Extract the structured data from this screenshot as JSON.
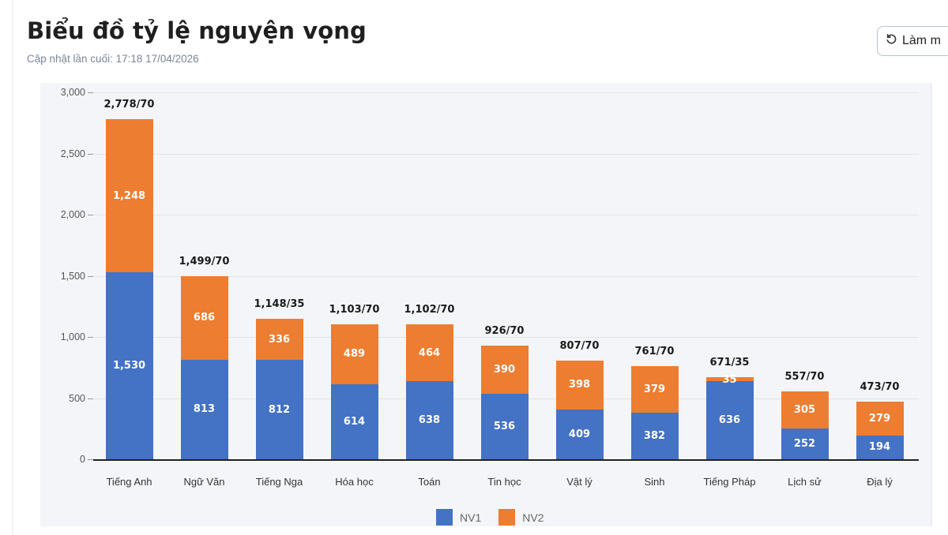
{
  "header": {
    "title": "Biểu đồ tỷ lệ nguyện vọng",
    "subtitle": "Cập nhật lần cuối: 17:18 17/04/2026",
    "refresh_label": "Làm m"
  },
  "colors": {
    "nv1": "#4472c4",
    "nv2": "#ed7d31"
  },
  "chart_data": {
    "type": "bar",
    "stacked": true,
    "title": "Biểu đồ tỷ lệ nguyện vọng",
    "xlabel": "",
    "ylabel": "",
    "ylim": [
      0,
      3000
    ],
    "yticks": [
      "0",
      "500",
      "1,000",
      "1,500",
      "2,000",
      "2,500",
      "3,000"
    ],
    "grid": true,
    "legend_position": "bottom",
    "categories": [
      "Tiếng Anh",
      "Ngữ Văn",
      "Tiếng Nga",
      "Hóa học",
      "Toán",
      "Tin học",
      "Vật lý",
      "Sinh",
      "Tiếng Pháp",
      "Lịch sử",
      "Địa lý"
    ],
    "series": [
      {
        "name": "NV1",
        "values": [
          1530,
          813,
          812,
          614,
          638,
          536,
          409,
          382,
          636,
          252,
          194
        ]
      },
      {
        "name": "NV2",
        "values": [
          1248,
          686,
          336,
          489,
          464,
          390,
          398,
          379,
          35,
          305,
          279
        ]
      }
    ],
    "totals": [
      "2,778/70",
      "1,499/70",
      "1,148/35",
      "1,103/70",
      "1,102/70",
      "926/70",
      "807/70",
      "761/70",
      "671/35",
      "557/70",
      "473/70"
    ],
    "nv1_labels": [
      "1,530",
      "813",
      "812",
      "614",
      "638",
      "536",
      "409",
      "382",
      "636",
      "252",
      "194"
    ],
    "nv2_labels": [
      "1,248",
      "686",
      "336",
      "489",
      "464",
      "390",
      "398",
      "379",
      "35",
      "305",
      "279"
    ]
  },
  "legend": [
    {
      "label": "NV1",
      "color": "#4472c4"
    },
    {
      "label": "NV2",
      "color": "#ed7d31"
    }
  ]
}
